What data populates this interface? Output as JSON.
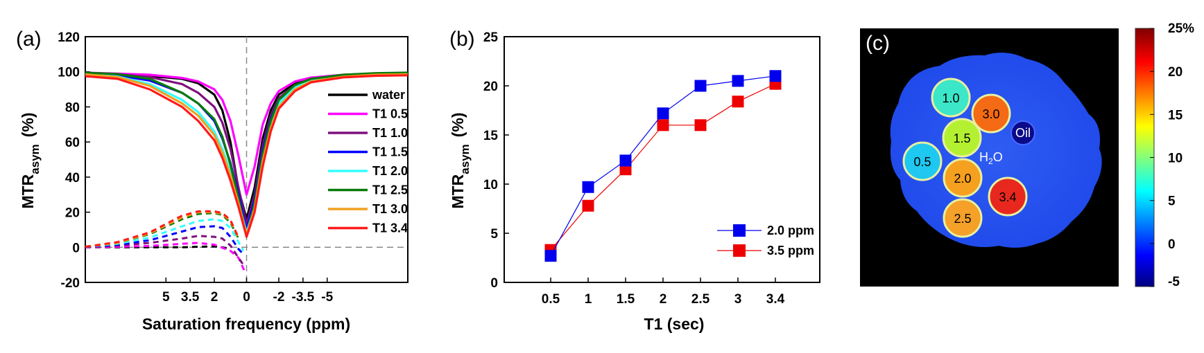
{
  "chart_data": [
    {
      "panel": "(a)",
      "type": "line",
      "xlabel": "Saturation frequency (ppm)",
      "ylabel": "MTR",
      "ylabel_sub": "asym",
      "ylabel_unit": "(%)",
      "xlim": [
        10,
        -10
      ],
      "ylim": [
        -20,
        120
      ],
      "xticks": [
        5,
        3.5,
        2,
        0,
        -2,
        -3.5,
        -5
      ],
      "xtick_labels": [
        "5",
        "3.5",
        "2",
        "0",
        "-2",
        "-3.5",
        "-5"
      ],
      "yticks": [
        -20,
        0,
        20,
        40,
        60,
        80,
        100,
        120
      ],
      "legend_position": "right",
      "series": [
        {
          "name": "water",
          "color": "#000000",
          "z": [
            [
              10,
              99
            ],
            [
              8,
              98.6
            ],
            [
              6,
              97.6
            ],
            [
              4,
              96
            ],
            [
              3,
              93.5
            ],
            [
              2,
              87
            ],
            [
              1.5,
              78
            ],
            [
              1,
              60
            ],
            [
              0.5,
              33
            ],
            [
              0,
              16
            ],
            [
              -0.5,
              34
            ],
            [
              -1,
              62
            ],
            [
              -1.5,
              78
            ],
            [
              -2,
              87
            ],
            [
              -3,
              93.5
            ],
            [
              -4,
              96
            ],
            [
              -6,
              97.6
            ],
            [
              -8,
              98.6
            ],
            [
              -10,
              99
            ]
          ],
          "mtr": [
            [
              10,
              0
            ],
            [
              8,
              0
            ],
            [
              6,
              0
            ],
            [
              4,
              0
            ],
            [
              3,
              0.3
            ],
            [
              2,
              0.5
            ],
            [
              1.5,
              0
            ],
            [
              1,
              -1
            ]
          ]
        },
        {
          "name": "T1 0.5",
          "color": "#ff00ff",
          "z": [
            [
              10,
              99.5
            ],
            [
              8,
              99
            ],
            [
              6,
              98.3
            ],
            [
              4,
              96.5
            ],
            [
              3,
              94.5
            ],
            [
              2,
              90
            ],
            [
              1.5,
              84
            ],
            [
              1,
              72
            ],
            [
              0.5,
              52
            ],
            [
              0,
              30
            ],
            [
              -0.5,
              46
            ],
            [
              -1,
              70
            ],
            [
              -1.5,
              82
            ],
            [
              -2,
              89
            ],
            [
              -3,
              94.5
            ],
            [
              -4,
              96.7
            ],
            [
              -6,
              98.3
            ],
            [
              -8,
              99
            ],
            [
              -10,
              99.5
            ]
          ],
          "mtr": [
            [
              10,
              0
            ],
            [
              8,
              0.3
            ],
            [
              6,
              0.8
            ],
            [
              4,
              2
            ],
            [
              3,
              2.5
            ],
            [
              2,
              1.5
            ],
            [
              1,
              -2
            ],
            [
              0.5,
              -6
            ],
            [
              0.1,
              -14
            ]
          ]
        },
        {
          "name": "T1 1.0",
          "color": "#7f0f7e",
          "z": [
            [
              10,
              99.2
            ],
            [
              8,
              98.6
            ],
            [
              6,
              97
            ],
            [
              4,
              93
            ],
            [
              3,
              88
            ],
            [
              2,
              80
            ],
            [
              1.5,
              71
            ],
            [
              1,
              56
            ],
            [
              0.5,
              34
            ],
            [
              0,
              13
            ],
            [
              -0.5,
              30
            ],
            [
              -1,
              58
            ],
            [
              -1.5,
              75
            ],
            [
              -2,
              85
            ],
            [
              -3,
              92.5
            ],
            [
              -4,
              95.5
            ],
            [
              -6,
              97.7
            ],
            [
              -8,
              98.7
            ],
            [
              -10,
              99.2
            ]
          ],
          "mtr": [
            [
              10,
              0.2
            ],
            [
              8,
              1
            ],
            [
              6,
              2.5
            ],
            [
              4,
              5
            ],
            [
              3,
              6.5
            ],
            [
              2,
              6
            ],
            [
              1.5,
              5
            ],
            [
              1,
              1
            ],
            [
              0.5,
              -6
            ],
            [
              0.2,
              -10
            ]
          ]
        },
        {
          "name": "T1 1.5",
          "color": "#0000ff",
          "z": [
            [
              10,
              99
            ],
            [
              8,
              98
            ],
            [
              6,
              95
            ],
            [
              4,
              88
            ],
            [
              3,
              82
            ],
            [
              2,
              72
            ],
            [
              1.5,
              62
            ],
            [
              1,
              48
            ],
            [
              0.5,
              30
            ],
            [
              0,
              10
            ],
            [
              -0.5,
              27
            ],
            [
              -1,
              55
            ],
            [
              -1.5,
              73
            ],
            [
              -2,
              84
            ],
            [
              -3,
              92
            ],
            [
              -4,
              95.3
            ],
            [
              -6,
              97.5
            ],
            [
              -8,
              98.6
            ],
            [
              -10,
              99
            ]
          ],
          "mtr": [
            [
              10,
              0.3
            ],
            [
              8,
              1.5
            ],
            [
              6,
              4
            ],
            [
              4,
              9
            ],
            [
              3,
              11.5
            ],
            [
              2,
              12
            ],
            [
              1.5,
              11
            ],
            [
              1,
              6
            ],
            [
              0.5,
              -1
            ],
            [
              0.2,
              -4
            ]
          ]
        },
        {
          "name": "T1 2.0",
          "color": "#33ffff",
          "z": [
            [
              10,
              98.7
            ],
            [
              8,
              97.3
            ],
            [
              6,
              93
            ],
            [
              4,
              84
            ],
            [
              3,
              77
            ],
            [
              2,
              66
            ],
            [
              1.5,
              56
            ],
            [
              1,
              43
            ],
            [
              0.5,
              27
            ],
            [
              0,
              8
            ],
            [
              -0.5,
              24
            ],
            [
              -1,
              51
            ],
            [
              -1.5,
              70
            ],
            [
              -2,
              82
            ],
            [
              -3,
              91
            ],
            [
              -4,
              95
            ],
            [
              -6,
              97.3
            ],
            [
              -8,
              98.5
            ],
            [
              -10,
              98.8
            ]
          ],
          "mtr": [
            [
              10,
              0.3
            ],
            [
              8,
              2
            ],
            [
              6,
              5.5
            ],
            [
              4,
              12
            ],
            [
              3,
              15
            ],
            [
              2,
              16
            ],
            [
              1.5,
              15
            ],
            [
              1,
              11
            ],
            [
              0.5,
              3
            ],
            [
              0.2,
              -2
            ]
          ]
        },
        {
          "name": "T1 2.5",
          "color": "#0a7a0a",
          "z": [
            [
              10,
              99.5
            ],
            [
              8,
              98.7
            ],
            [
              6,
              96
            ],
            [
              4,
              88
            ],
            [
              3,
              82
            ],
            [
              2,
              73
            ],
            [
              1.5,
              63
            ],
            [
              1,
              47
            ],
            [
              0.5,
              28
            ],
            [
              0,
              6
            ],
            [
              -0.5,
              25
            ],
            [
              -1,
              53
            ],
            [
              -1.5,
              72
            ],
            [
              -2,
              84
            ],
            [
              -3,
              92.5
            ],
            [
              -4,
              96
            ],
            [
              -6,
              98.3
            ],
            [
              -8,
              99.2
            ],
            [
              -10,
              99.5
            ]
          ],
          "mtr": [
            [
              10,
              0.3
            ],
            [
              8,
              2.5
            ],
            [
              6,
              7.5
            ],
            [
              4,
              16
            ],
            [
              3,
              19
            ],
            [
              2,
              19.5
            ],
            [
              1.5,
              18.5
            ],
            [
              1,
              14
            ],
            [
              0.5,
              5
            ]
          ]
        },
        {
          "name": "T1 3.0",
          "color": "#f0a020",
          "z": [
            [
              10,
              98.5
            ],
            [
              8,
              97
            ],
            [
              6,
              92
            ],
            [
              4,
              82
            ],
            [
              3,
              75
            ],
            [
              2,
              64
            ],
            [
              1.5,
              54
            ],
            [
              1,
              41
            ],
            [
              0.5,
              25
            ],
            [
              0,
              7
            ],
            [
              -0.5,
              22
            ],
            [
              -1,
              49
            ],
            [
              -1.5,
              68
            ],
            [
              -2,
              80
            ],
            [
              -3,
              90
            ],
            [
              -4,
              94.5
            ],
            [
              -6,
              97.2
            ],
            [
              -8,
              98.3
            ],
            [
              -10,
              98.6
            ]
          ],
          "mtr": [
            [
              10,
              0.3
            ],
            [
              8,
              2.5
            ],
            [
              6,
              8
            ],
            [
              4,
              17
            ],
            [
              3,
              20
            ],
            [
              2,
              20
            ],
            [
              1.5,
              19
            ],
            [
              1,
              15
            ],
            [
              0.5,
              5
            ]
          ]
        },
        {
          "name": "T1 3.4",
          "color": "#ff1a1a",
          "z": [
            [
              10,
              97.5
            ],
            [
              8,
              96
            ],
            [
              6,
              90
            ],
            [
              4,
              80
            ],
            [
              3,
              72
            ],
            [
              2,
              61
            ],
            [
              1.5,
              51
            ],
            [
              1,
              38
            ],
            [
              0.5,
              23
            ],
            [
              0,
              6
            ],
            [
              -0.5,
              20
            ],
            [
              -1,
              46
            ],
            [
              -1.5,
              66
            ],
            [
              -2,
              79
            ],
            [
              -3,
              89
            ],
            [
              -4,
              94
            ],
            [
              -6,
              96.8
            ],
            [
              -8,
              97.7
            ],
            [
              -10,
              98
            ]
          ],
          "mtr": [
            [
              10,
              0.3
            ],
            [
              8,
              3
            ],
            [
              6,
              8.5
            ],
            [
              4,
              18
            ],
            [
              3,
              20.5
            ],
            [
              2,
              20.5
            ],
            [
              1.5,
              19.5
            ],
            [
              1,
              15.5
            ],
            [
              0.5,
              5.5
            ]
          ]
        }
      ]
    },
    {
      "panel": "(b)",
      "type": "line",
      "xlabel": "T1 (sec)",
      "ylabel": "MTR",
      "ylabel_sub": "asym",
      "ylabel_unit": "(%)",
      "categories": [
        "0.5",
        "1",
        "1.5",
        "2",
        "2.5",
        "3",
        "3.4"
      ],
      "ylim": [
        0,
        25
      ],
      "yticks": [
        0,
        5,
        10,
        15,
        20,
        25
      ],
      "legend_position": "bottom-right",
      "series": [
        {
          "name": "2.0 ppm",
          "color": "#0000ee",
          "values": [
            2.7,
            9.7,
            12.4,
            17.2,
            20.0,
            20.5,
            21.0
          ]
        },
        {
          "name": "3.5 ppm",
          "color": "#ee0000",
          "values": [
            3.3,
            7.8,
            11.5,
            16.0,
            16.0,
            18.4,
            20.2
          ]
        }
      ]
    },
    {
      "panel": "(c)",
      "type": "heatmap",
      "colorbar": {
        "ticks": [
          "25%",
          "20",
          "15",
          "10",
          "5",
          "0",
          "-5"
        ],
        "range": [
          -5,
          25
        ]
      },
      "labels": {
        "oil": "Oil",
        "water_main": "H",
        "water_sub": "2",
        "water_tail": "O"
      },
      "vials": [
        {
          "label": "1.0",
          "value": 10,
          "color": "#3ce6c8"
        },
        {
          "label": "3.0",
          "value": 20,
          "color": "#f56a14"
        },
        {
          "label": "1.5",
          "value": 13,
          "color": "#b4f032"
        },
        {
          "label": "0.5",
          "value": 5,
          "color": "#1ec8f0"
        },
        {
          "label": "2.0",
          "value": 17,
          "color": "#f5a01e"
        },
        {
          "label": "3.4",
          "value": 24,
          "color": "#e8281e"
        },
        {
          "label": "2.5",
          "value": 18,
          "color": "#f5a028"
        }
      ]
    }
  ]
}
